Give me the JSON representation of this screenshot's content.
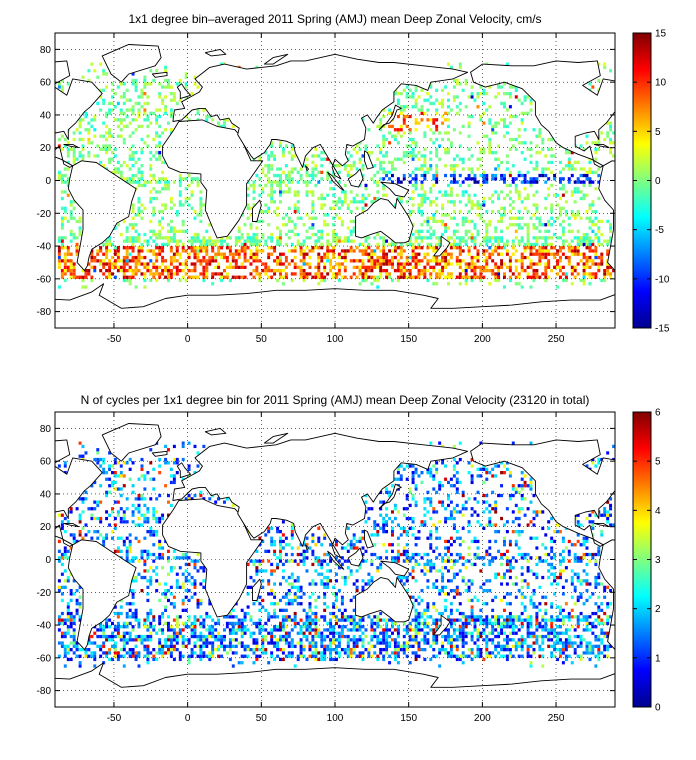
{
  "chart_data": [
    {
      "type": "heatmap",
      "title": "1x1 degree bin–averaged 2011 Spring (AMJ) mean Deep Zonal Velocity, cm/s",
      "xlabel": "",
      "ylabel": "",
      "xlim": [
        -90,
        290
      ],
      "ylim": [
        -90,
        90
      ],
      "x_ticks": [
        -50,
        0,
        50,
        100,
        150,
        200,
        250
      ],
      "y_ticks": [
        80,
        60,
        40,
        20,
        0,
        -20,
        -40,
        -60,
        -80
      ],
      "grid": "dotted",
      "colorbar": {
        "min": -15,
        "max": 15,
        "ticks": [
          15,
          10,
          5,
          0,
          -5,
          -10,
          -15
        ],
        "colormap": "jet",
        "placement": "right"
      },
      "highlights": [
        {
          "region": "Antarctic Circumpolar Current band, lat -60 to -40",
          "value": 10
        },
        {
          "region": "Equatorial Pacific, lat 0",
          "value": -12
        },
        {
          "region": "Kuroshio extension, lat 30 to 40, lon 140 to 170",
          "value": 8
        }
      ]
    },
    {
      "type": "heatmap",
      "title": "N of cycles per 1x1 degree bin for 2011 Spring (AMJ) mean Deep Zonal Velocity (23120 in total)",
      "xlabel": "",
      "ylabel": "",
      "xlim": [
        -90,
        290
      ],
      "ylim": [
        -90,
        90
      ],
      "x_ticks": [
        -50,
        0,
        50,
        100,
        150,
        200,
        250
      ],
      "y_ticks": [
        80,
        60,
        40,
        20,
        0,
        -20,
        -40,
        -60,
        -80
      ],
      "grid": "dotted",
      "total": 23120,
      "colorbar": {
        "min": 0,
        "max": 6,
        "ticks": [
          6,
          5,
          4,
          3,
          2,
          1,
          0
        ],
        "colormap": "jet",
        "placement": "right"
      }
    }
  ],
  "colors": {
    "land": "#ffffff",
    "coast": "#000000",
    "background": "#ffffff"
  }
}
